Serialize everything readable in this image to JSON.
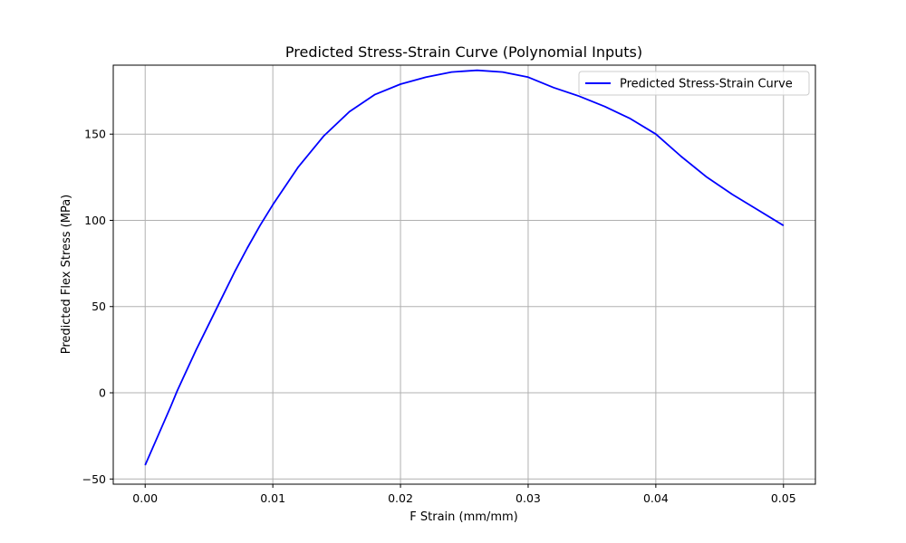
{
  "chart_data": {
    "type": "line",
    "title": "Predicted Stress-Strain Curve (Polynomial Inputs)",
    "xlabel": "F Strain (mm/mm)",
    "ylabel": "Predicted Flex Stress (MPa)",
    "xlim": [
      -0.0025,
      0.0525
    ],
    "ylim": [
      -53,
      190
    ],
    "xticks": [
      0.0,
      0.01,
      0.02,
      0.03,
      0.04,
      0.05
    ],
    "xtick_labels": [
      "0.00",
      "0.01",
      "0.02",
      "0.03",
      "0.04",
      "0.05"
    ],
    "yticks": [
      -50,
      0,
      50,
      100,
      150
    ],
    "ytick_labels": [
      "−50",
      "0",
      "50",
      "100",
      "150"
    ],
    "grid": true,
    "legend_position": "top-right",
    "series": [
      {
        "name": "Predicted Stress-Strain Curve",
        "color": "#0000ff",
        "x": [
          0.0,
          0.001,
          0.002,
          0.0025,
          0.003,
          0.004,
          0.005,
          0.006,
          0.007,
          0.008,
          0.009,
          0.01,
          0.012,
          0.014,
          0.016,
          0.018,
          0.02,
          0.022,
          0.024,
          0.026,
          0.028,
          0.03,
          0.032,
          0.034,
          0.036,
          0.038,
          0.04,
          0.042,
          0.044,
          0.046,
          0.048,
          0.05
        ],
        "y": [
          -42,
          -25,
          -8,
          1,
          9,
          25,
          40,
          55,
          70,
          84,
          97,
          109,
          131,
          149,
          163,
          173,
          179,
          183,
          186,
          187,
          186,
          183,
          177,
          172,
          166,
          159,
          150,
          137,
          125,
          115,
          106,
          97
        ]
      }
    ]
  }
}
